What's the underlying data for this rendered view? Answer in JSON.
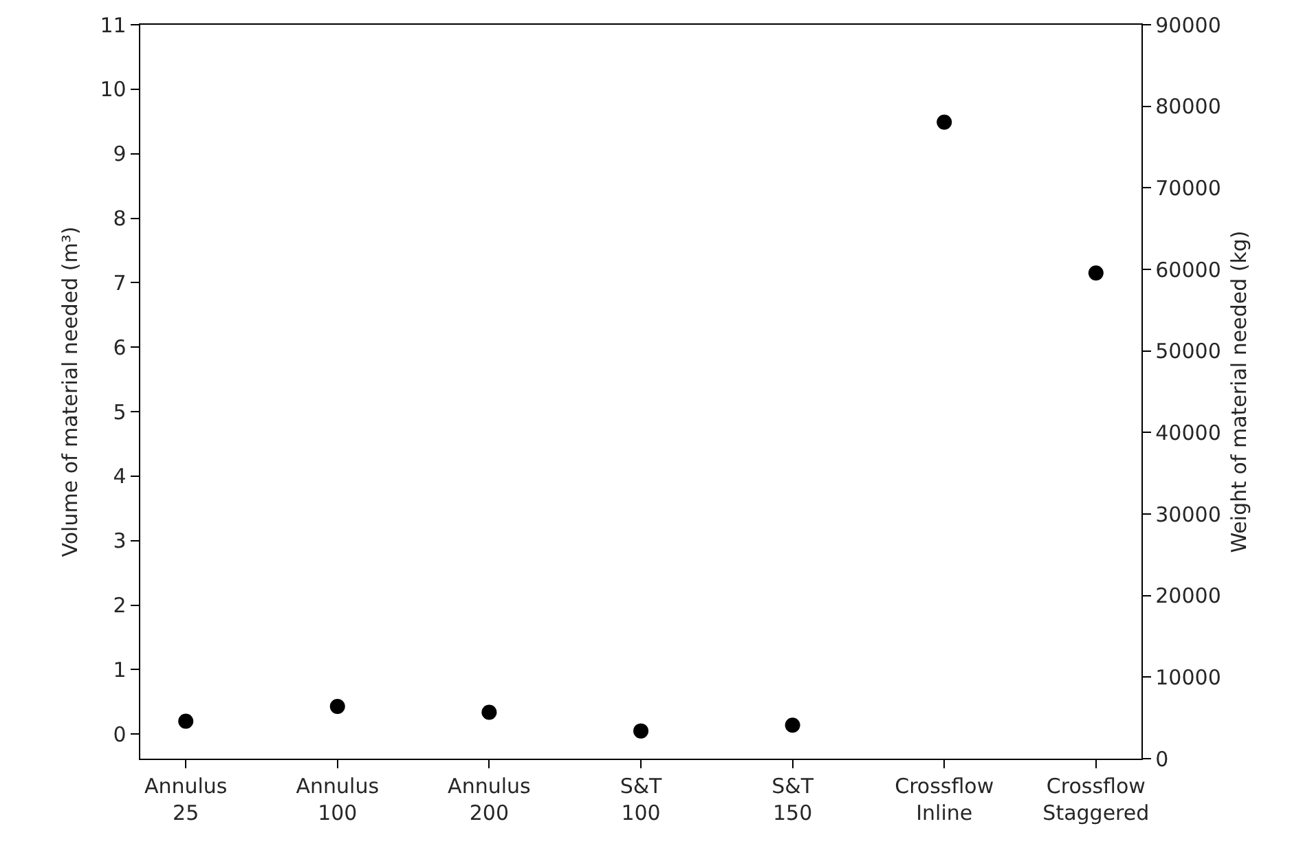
{
  "chart_data": {
    "type": "scatter",
    "categories": [
      "Annulus\n25",
      "Annulus\n100",
      "Annulus\n200",
      "S&T\n100",
      "S&T\n150",
      "Crossflow\nInline",
      "Crossflow\nStaggered"
    ],
    "series": [
      {
        "color": "#000000",
        "values": [
          0.2,
          0.43,
          0.34,
          0.05,
          0.14,
          9.49,
          7.15
        ]
      }
    ],
    "ylabel": "Volume of material needed (m³)",
    "y2label": "Weight of material needed (kg)",
    "ylim": [
      -0.38,
      11
    ],
    "yticks": [
      0,
      1,
      2,
      3,
      4,
      5,
      6,
      7,
      8,
      9,
      10,
      11
    ],
    "y2lim": [
      0,
      90000
    ],
    "y2ticks": [
      0,
      10000,
      20000,
      30000,
      40000,
      50000,
      60000,
      70000,
      80000,
      90000
    ],
    "marker": "circle"
  }
}
